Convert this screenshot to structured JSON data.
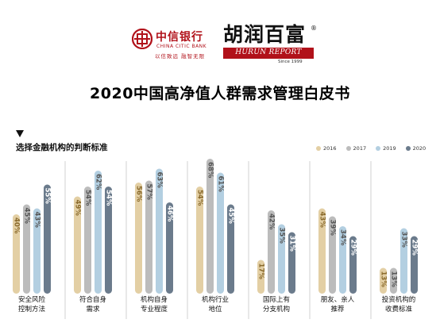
{
  "header": {
    "citic_name": "中信银行",
    "citic_en": "CHINA CITIC BANK",
    "citic_slogan": "以信致远  融智无限",
    "hurun_name": "胡润百富",
    "hurun_en": "HURUN REPORT",
    "hurun_since": "Since 1999",
    "reg_mark": "®"
  },
  "chart_data": {
    "type": "bar",
    "title": "2020中国高净值人群需求管理白皮书",
    "subtitle": "选择金融机构的判断标准",
    "categories": [
      [
        "安全风险",
        "控制方法"
      ],
      [
        "符合自身",
        "需求"
      ],
      [
        "机构自身",
        "专业程度"
      ],
      [
        "机构行业",
        "地位"
      ],
      [
        "国际上有",
        "分支机构"
      ],
      [
        "朋友、亲人",
        "推荐"
      ],
      [
        "投资机构的",
        "收费标准"
      ]
    ],
    "series": [
      {
        "name": "2016",
        "color": "#e3cfa4",
        "values": [
          40,
          49,
          56,
          54,
          17,
          43,
          13
        ]
      },
      {
        "name": "2017",
        "color": "#bcbcbc",
        "values": [
          45,
          54,
          57,
          68,
          42,
          39,
          13
        ]
      },
      {
        "name": "2019",
        "color": "#b3cfe1",
        "values": [
          43,
          62,
          63,
          61,
          35,
          34,
          33
        ]
      },
      {
        "name": "2020",
        "color": "#6b7b8c",
        "values": [
          55,
          54,
          46,
          45,
          31,
          29,
          29
        ]
      }
    ],
    "value_labels": [
      [
        "40%",
        "49%",
        "56%",
        "54%",
        "17%",
        "43%",
        "13%"
      ],
      [
        "45%",
        "54%",
        "57%",
        "68%",
        "42%",
        "39%",
        "13%"
      ],
      [
        "43%",
        "62%",
        "63%",
        "61%",
        "35%",
        "34%",
        "33%"
      ],
      [
        "55%",
        "54%",
        "46%",
        "45%",
        "31%",
        "29%",
        "29%"
      ]
    ],
    "legend_position": "top-right",
    "grid": false
  }
}
